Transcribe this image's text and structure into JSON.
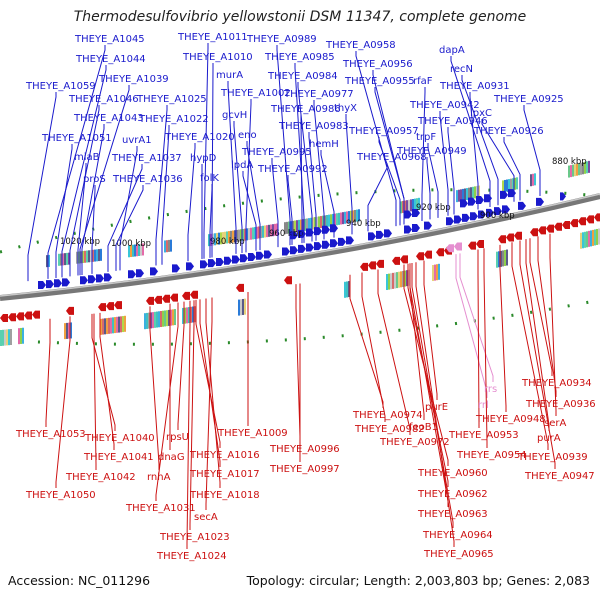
{
  "title": "Thermodesulfovibrio yellowstonii DSM 11347, complete genome",
  "footer": {
    "accession": "Accession: NC_011296",
    "topology": "Topology: circular; Length: 2,003,803 bp; Genes: 2,083"
  },
  "colors": {
    "forward": "#1a1acc",
    "reverse": "#cc1111",
    "rna": "#e58fd0",
    "backbone": "#7a7a7a",
    "ticks": "#2a8a2a"
  },
  "scale_labels": [
    "1020 kbp",
    "1000 kbp",
    "980 kbp",
    "960 kbp",
    "940 kbp",
    "920 kbp",
    "900 kbp",
    "880 kbp"
  ],
  "top_labels": [
    "THEYE_A1045",
    "THEYE_A1044",
    "THEYE_A1059",
    "THEYE_A1039",
    "THEYE_A1046",
    "THEYE_A1043",
    "THEYE_A1051",
    "miaB",
    "proS",
    "uvrA1",
    "THEYE_A1037",
    "THEYE_A1036",
    "THEYE_A1011",
    "THEYE_A1010",
    "murA",
    "THEYE_A1025",
    "THEYE_A1002",
    "THEYE_A1022",
    "gcvH",
    "THEYE_A1020",
    "eno",
    "hypD",
    "lpdA",
    "folK",
    "THEYE_A0989",
    "THEYE_A0985",
    "THEYE_A0984",
    "THEYE_A0977",
    "THEYE_A0986",
    "THEYE_A0983",
    "THEYE_A0995",
    "THEYE_A0992",
    "hemH",
    "thyX",
    "THEYE_A0958",
    "THEYE_A0956",
    "THEYE_A0955",
    "THEYE_A0957",
    "THEYE_A0968",
    "rfaF",
    "THEYE_A0942",
    "THEYE_A0946",
    "trpF",
    "THEYE_A0949",
    "dapA",
    "recN",
    "THEYE_A0931",
    "lpxC",
    "THEYE_A0926",
    "THEYE_A0925"
  ],
  "bottom_labels": [
    "THEYE_A1053",
    "THEYE_A1040",
    "THEYE_A1041",
    "THEYE_A1042",
    "THEYE_A1050",
    "rpsU",
    "dnaG",
    "rnhA",
    "THEYE_A1031",
    "THEYE_A1016",
    "THEYE_A1017",
    "THEYE_A1018",
    "secA",
    "THEYE_A1023",
    "THEYE_A1024",
    "THEYE_A1009",
    "THEYE_A0996",
    "THEYE_A0997",
    "THEYE_A0974",
    "THEYE_A0982",
    "THEYE_A0972",
    "feoB1",
    "purE",
    "THEYE_A0960",
    "THEYE_A0962",
    "THEYE_A0963",
    "THEYE_A0964",
    "THEYE_A0965",
    "rrs",
    "rrl",
    "THEYE_A0953",
    "THEYE_A0954",
    "THEYE_A0948",
    "THEYE_A0934",
    "THEYE_A0936",
    "serA",
    "purA",
    "THEYE_A0939",
    "THEYE_A0947"
  ]
}
